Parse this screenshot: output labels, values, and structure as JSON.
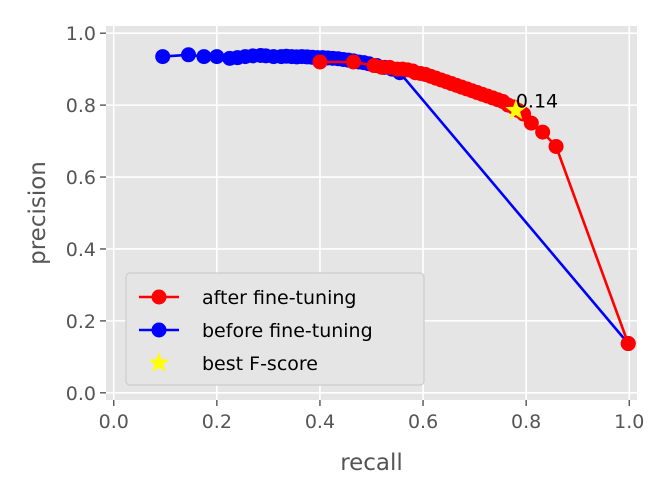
{
  "chart_data": {
    "type": "line",
    "xlabel": "recall",
    "ylabel": "precision",
    "xlim": [
      -0.015,
      1.015
    ],
    "ylim": [
      -0.02,
      1.02
    ],
    "xticks": [
      0.0,
      0.2,
      0.4,
      0.6,
      0.8,
      1.0
    ],
    "yticks": [
      0.0,
      0.2,
      0.4,
      0.6,
      0.8,
      1.0
    ],
    "xtick_labels": [
      "0.0",
      "0.2",
      "0.4",
      "0.6",
      "0.8",
      "1.0"
    ],
    "ytick_labels": [
      "0.0",
      "0.2",
      "0.4",
      "0.6",
      "0.8",
      "1.0"
    ],
    "grid": true,
    "legend_position": "lower-left",
    "colors": {
      "background": "#e5e5e5",
      "grid": "#ffffff",
      "after": "#ff0000",
      "before": "#0000ff",
      "best": "#ffff00"
    },
    "series": [
      {
        "name": "after fine-tuning",
        "color": "#ff0000",
        "x": [
          0.4,
          0.465,
          0.505,
          0.52,
          0.535,
          0.55,
          0.56,
          0.57,
          0.58,
          0.585,
          0.595,
          0.605,
          0.615,
          0.625,
          0.635,
          0.645,
          0.655,
          0.665,
          0.675,
          0.685,
          0.695,
          0.705,
          0.715,
          0.725,
          0.735,
          0.745,
          0.755,
          0.765,
          0.775,
          0.785,
          0.795,
          0.81,
          0.832,
          0.858,
          0.998
        ],
        "y": [
          0.92,
          0.92,
          0.91,
          0.905,
          0.905,
          0.9,
          0.9,
          0.898,
          0.895,
          0.89,
          0.888,
          0.885,
          0.88,
          0.875,
          0.87,
          0.865,
          0.86,
          0.855,
          0.85,
          0.845,
          0.84,
          0.835,
          0.83,
          0.825,
          0.82,
          0.815,
          0.81,
          0.8,
          0.795,
          0.785,
          0.775,
          0.75,
          0.725,
          0.685,
          0.137
        ]
      },
      {
        "name": "before fine-tuning",
        "color": "#0000ff",
        "x": [
          0.095,
          0.145,
          0.175,
          0.2,
          0.225,
          0.24,
          0.255,
          0.27,
          0.285,
          0.295,
          0.31,
          0.325,
          0.335,
          0.345,
          0.355,
          0.365,
          0.375,
          0.385,
          0.395,
          0.405,
          0.415,
          0.425,
          0.435,
          0.445,
          0.455,
          0.465,
          0.475,
          0.485,
          0.495,
          0.51,
          0.525,
          0.54,
          0.555,
          0.998
        ],
        "y": [
          0.935,
          0.94,
          0.935,
          0.935,
          0.93,
          0.932,
          0.935,
          0.937,
          0.938,
          0.937,
          0.935,
          0.935,
          0.936,
          0.935,
          0.934,
          0.935,
          0.934,
          0.933,
          0.932,
          0.932,
          0.931,
          0.93,
          0.929,
          0.927,
          0.925,
          0.923,
          0.92,
          0.918,
          0.915,
          0.91,
          0.905,
          0.9,
          0.89,
          0.137
        ]
      }
    ],
    "best_point": {
      "name": "best F-score",
      "x": 0.78,
      "y": 0.785,
      "color": "#ffff00"
    },
    "annotation": {
      "text": "0.14",
      "x": 0.78,
      "y": 0.785
    }
  }
}
